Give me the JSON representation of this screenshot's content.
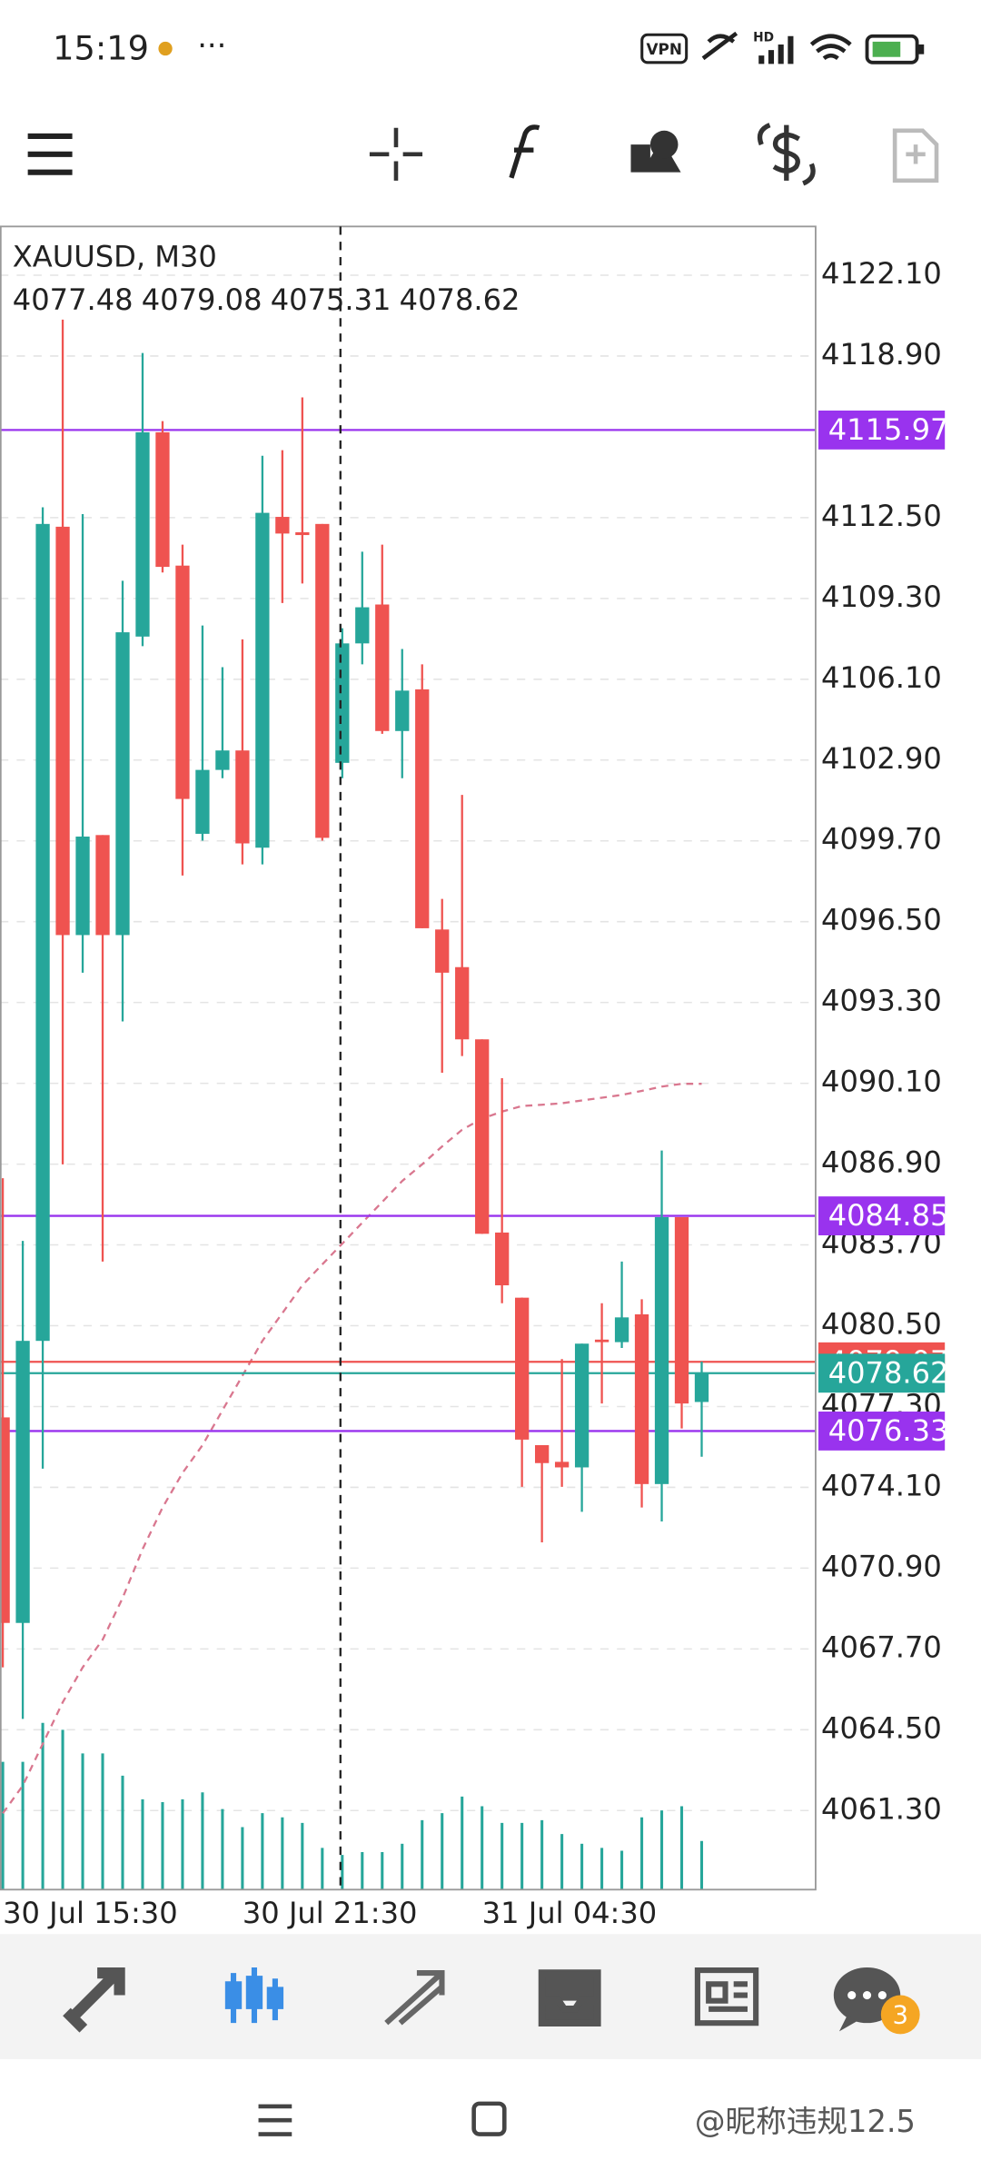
{
  "status_bar": {
    "time": "15:19",
    "dots": "···",
    "vpn": "VPN",
    "hd": "HD"
  },
  "chart_data": {
    "type": "candlestick",
    "title": "XAUUSD, M30",
    "info": [
      4077.48,
      4079.08,
      4075.31,
      4078.62
    ],
    "categories": [
      "30 Jul 15:30",
      null,
      null,
      null,
      null,
      null,
      null,
      null,
      null,
      null,
      null,
      null,
      "30 Jul 21:30",
      null,
      null,
      null,
      null,
      null,
      null,
      null,
      null,
      null,
      null,
      null,
      "31 Jul 04:30",
      null,
      null,
      null,
      null,
      null,
      null,
      null,
      null,
      null,
      null,
      null
    ],
    "open": [
      4076.87,
      4068.73,
      4079.9,
      4112.14,
      4095.97,
      4099.93,
      4095.97,
      4107.79,
      4115.88,
      4110.6,
      4099.98,
      4102.51,
      4103.28,
      4099.43,
      4112.53,
      4111.92,
      4112.25,
      4102.79,
      4107.52,
      4109.06,
      4104.05,
      4105.7,
      4096.19,
      4094.7,
      4091.84,
      4084.19,
      4081.61,
      4075.77,
      4075.11,
      4074.89,
      4079.95,
      4079.85,
      4080.95,
      4074.23,
      4084.8,
      4077.48
    ],
    "high": [
      4086.34,
      4083.86,
      4112.91,
      4120.34,
      4112.64,
      4099.93,
      4110.0,
      4119.02,
      4116.32,
      4111.43,
      4108.23,
      4106.58,
      4107.68,
      4114.95,
      4115.17,
      4117.26,
      4112.25,
      4108.12,
      4111.15,
      4111.43,
      4107.3,
      4106.69,
      4097.4,
      4101.52,
      4091.84,
      4090.3,
      4081.61,
      4075.77,
      4079.18,
      4079.79,
      4081.39,
      4083.04,
      4081.55,
      4087.44,
      4084.8,
      4079.08
    ],
    "low": [
      4066.97,
      4064.93,
      4074.84,
      4086.89,
      4094.48,
      4083.04,
      4092.55,
      4107.41,
      4110.33,
      4098.33,
      4099.71,
      4102.18,
      4098.77,
      4098.77,
      4109.12,
      4109.89,
      4099.71,
      4102.18,
      4106.69,
      4103.94,
      4102.18,
      4096.24,
      4090.52,
      4091.18,
      4084.14,
      4081.39,
      4074.12,
      4071.92,
      4074.12,
      4073.13,
      4077.42,
      4079.62,
      4073.3,
      4072.75,
      4076.43,
      4075.31
    ],
    "close": [
      4068.73,
      4079.9,
      4112.25,
      4095.97,
      4099.87,
      4095.97,
      4107.96,
      4115.88,
      4110.55,
      4101.36,
      4102.51,
      4103.28,
      4099.6,
      4112.69,
      4111.87,
      4111.81,
      4099.82,
      4107.52,
      4108.95,
      4104.05,
      4105.65,
      4096.24,
      4094.48,
      4091.84,
      4084.14,
      4082.1,
      4075.99,
      4075.06,
      4074.89,
      4079.79,
      4079.85,
      4080.83,
      4074.23,
      4084.8,
      4077.42,
      4078.62
    ],
    "up_color": "#26a69a",
    "down_color": "#ef5350",
    "volumes": [
      92,
      92,
      120,
      115,
      98,
      98,
      82,
      65,
      63,
      65,
      70,
      58,
      45,
      55,
      52,
      48,
      30,
      25,
      27,
      27,
      33,
      50,
      55,
      67,
      60,
      48,
      48,
      50,
      40,
      33,
      30,
      28,
      52,
      57,
      60,
      35
    ],
    "volume_color": "#26a69a",
    "ma": {
      "color": "#d9778f",
      "values": [
        4061.19,
        4062.29,
        4063.94,
        4065.59,
        4066.97,
        4068.07,
        4069.72,
        4071.65,
        4073.3,
        4074.67,
        4075.77,
        4077.15,
        4078.52,
        4079.9,
        4081.0,
        4082.1,
        4082.93,
        4083.75,
        4084.58,
        4085.4,
        4086.23,
        4086.89,
        4087.6,
        4088.26,
        4088.7,
        4088.98,
        4089.2,
        4089.25,
        4089.31,
        4089.42,
        4089.53,
        4089.64,
        4089.8,
        4089.97,
        4090.08,
        4090.08
      ]
    },
    "ylim": [
      4058.17,
      4124.03
    ],
    "yticks": [
      {
        "value": 4122.1,
        "label": "4122.10"
      },
      {
        "value": 4118.9,
        "label": "4118.90"
      },
      {
        "value": 4112.5,
        "label": "4112.50"
      },
      {
        "value": 4109.3,
        "label": "4109.30"
      },
      {
        "value": 4106.1,
        "label": "4106.10"
      },
      {
        "value": 4102.9,
        "label": "4102.90"
      },
      {
        "value": 4099.7,
        "label": "4099.70"
      },
      {
        "value": 4096.5,
        "label": "4096.50"
      },
      {
        "value": 4093.3,
        "label": "4093.30"
      },
      {
        "value": 4090.1,
        "label": "4090.10"
      },
      {
        "value": 4086.9,
        "label": "4086.90"
      },
      {
        "value": 4083.7,
        "label": "4083.70"
      },
      {
        "value": 4080.5,
        "label": "4080.50"
      },
      {
        "value": 4077.3,
        "label": "4077.30"
      },
      {
        "value": 4074.1,
        "label": "4074.10"
      },
      {
        "value": 4070.9,
        "label": "4070.90"
      },
      {
        "value": 4067.7,
        "label": "4067.70"
      },
      {
        "value": 4064.5,
        "label": "4064.50"
      },
      {
        "value": 4061.3,
        "label": "4061.30"
      }
    ],
    "grid": true,
    "price_lines": [
      {
        "value": 4115.97,
        "color": "#9933ee"
      },
      {
        "value": 4084.85,
        "color": "#9933ee"
      },
      {
        "value": 4079.07,
        "color": "#ef5350"
      },
      {
        "value": 4078.62,
        "color": "#26a69a"
      },
      {
        "value": 4076.33,
        "color": "#9933ee"
      }
    ]
  },
  "bottom_nav": {
    "badge": "3"
  },
  "watermark": "@昵称违规12.5"
}
